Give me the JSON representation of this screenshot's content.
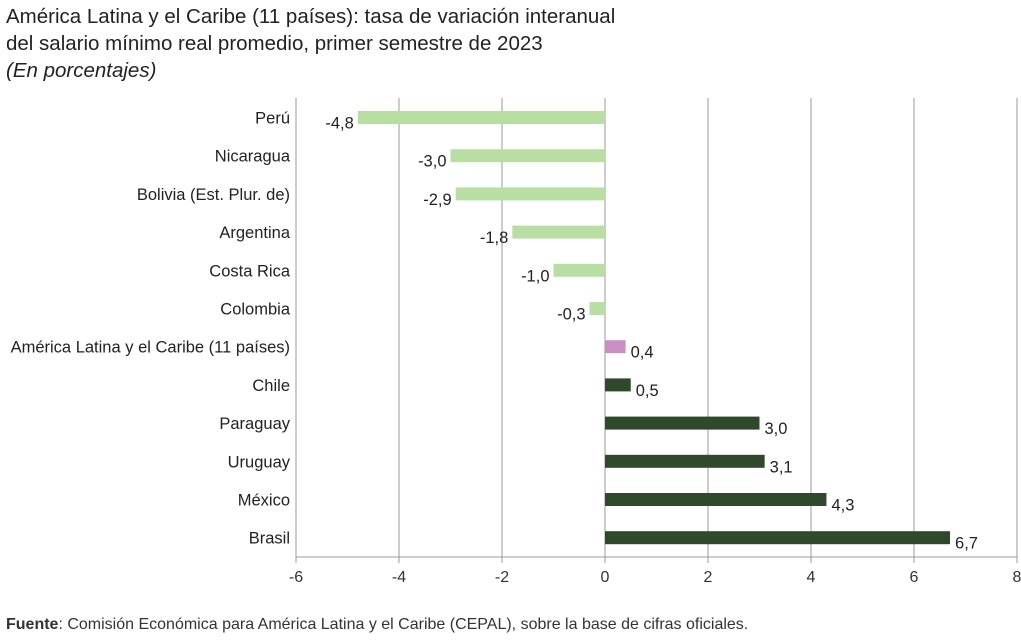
{
  "title_line1": "América Latina y el Caribe (11 países): tasa de variación interanual",
  "title_line2": "del salario mínimo real promedio, primer semestre de 2023",
  "subtitle": "(En porcentajes)",
  "source_label": "Fuente",
  "source_text": ":  Comisión Económica para América Latina y el Caribe (CEPAL), sobre la base de cifras oficiales.",
  "colors": {
    "negative": "#b8dea4",
    "aggregate": "#cc8fc4",
    "positive": "#2f4a2a",
    "grid": "#999999"
  },
  "chart_data": {
    "type": "bar",
    "orientation": "horizontal",
    "xlim": [
      -6,
      8
    ],
    "xticks": [
      -6,
      -4,
      -2,
      0,
      2,
      4,
      6,
      8
    ],
    "xtick_labels": [
      "-6",
      "-4",
      "-2",
      "0",
      "2",
      "4",
      "6",
      "8"
    ],
    "grid": true,
    "categories": [
      "Perú",
      "Nicaragua",
      "Bolivia (Est. Plur. de)",
      "Argentina",
      "Costa Rica",
      "Colombia",
      "América Latina y el Caribe (11 países)",
      "Chile",
      "Paraguay",
      "Uruguay",
      "México",
      "Brasil"
    ],
    "values": [
      -4.8,
      -3.0,
      -2.9,
      -1.8,
      -1.0,
      -0.3,
      0.4,
      0.5,
      3.0,
      3.1,
      4.3,
      6.7
    ],
    "value_labels": [
      "-4,8",
      "-3,0",
      "-2,9",
      "-1,8",
      "-1,0",
      "-0,3",
      "0,4",
      "0,5",
      "3,0",
      "3,1",
      "4,3",
      "6,7"
    ],
    "highlight_category": "América Latina y el Caribe (11 países)"
  }
}
